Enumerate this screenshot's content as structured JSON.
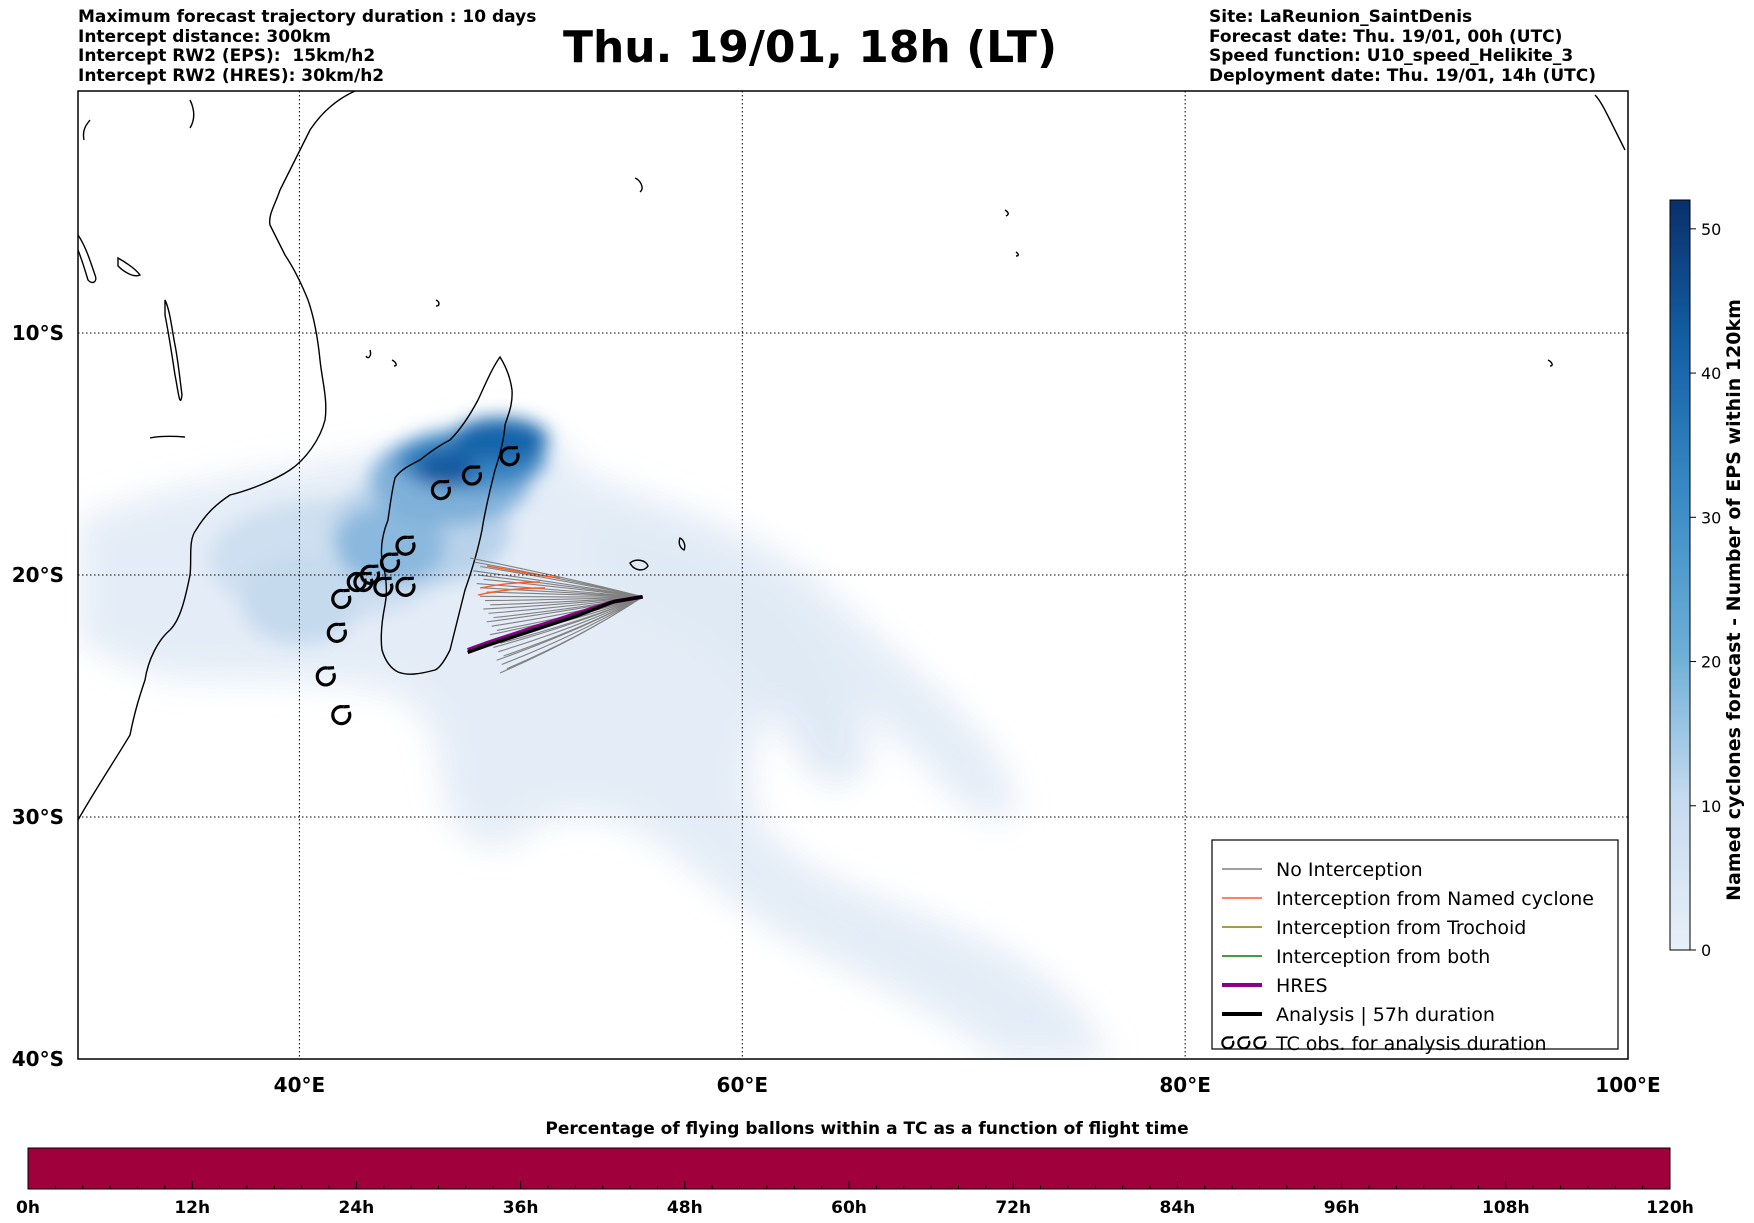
{
  "header_left": [
    "Maximum forecast trajectory duration : 10 days",
    "Intercept distance: 300km",
    "Intercept RW2 (EPS):  15km/h2",
    "Intercept RW2 (HRES): 30km/h2"
  ],
  "header_right": [
    "Site: LaReunion_SaintDenis",
    "Forecast date: Thu. 19/01, 00h (UTC)",
    "Speed function: U10_speed_Helikite_3",
    "Deployment date: Thu. 19/01, 14h (UTC)"
  ],
  "title": "Thu. 19/01, 18h (LT)",
  "map": {
    "lon_range": [
      30,
      100
    ],
    "lat_range": [
      0,
      -40
    ],
    "lon_ticks": [
      {
        "v": 40,
        "label": "40°E"
      },
      {
        "v": 60,
        "label": "60°E"
      },
      {
        "v": 80,
        "label": "80°E"
      },
      {
        "v": 100,
        "label": "100°E"
      }
    ],
    "lat_ticks": [
      {
        "v": -10,
        "label": "10°S"
      },
      {
        "v": -20,
        "label": "20°S"
      },
      {
        "v": -30,
        "label": "30°S"
      },
      {
        "v": -40,
        "label": "40°S"
      }
    ],
    "grid": "dotted"
  },
  "colorbar": {
    "label": "Named cyclones forecast - Number of EPS within 120km",
    "range": [
      0,
      52
    ],
    "ticks": [
      "0",
      "10",
      "20",
      "30",
      "40",
      "50"
    ],
    "colors": [
      "#e6eef8",
      "#08306b"
    ]
  },
  "legend": {
    "placement": "lower-right",
    "items": [
      {
        "label": "No Interception",
        "color": "#808080",
        "style": "thin-line"
      },
      {
        "label": "Interception from Named cyclone",
        "color": "#ff5a1e",
        "style": "thin-line"
      },
      {
        "label": "Interception from Trochoid",
        "color": "#808000",
        "style": "thin-line"
      },
      {
        "label": "Interception from both",
        "color": "#008000",
        "style": "thin-line"
      },
      {
        "label": "HRES",
        "color": "#8b008b",
        "style": "thick-line"
      },
      {
        "label": "Analysis | 57h duration",
        "color": "#000000",
        "style": "thick-line"
      },
      {
        "label": "TC obs. for analysis duration",
        "color": "#000000",
        "style": "cyclone-symbol"
      }
    ]
  },
  "bottom_bar": {
    "title": "Percentage of flying ballons within a TC as a function of flight time",
    "color": "#a0003c",
    "ticks": [
      "0h",
      "12h",
      "24h",
      "36h",
      "48h",
      "60h",
      "72h",
      "84h",
      "96h",
      "108h",
      "120h"
    ]
  },
  "tc_observations": [
    [
      49.5,
      -15.1
    ],
    [
      47.8,
      -15.9
    ],
    [
      46.4,
      -16.5
    ],
    [
      44.8,
      -18.8
    ],
    [
      44.1,
      -19.5
    ],
    [
      43.2,
      -20.0
    ],
    [
      42.9,
      -20.3
    ],
    [
      42.6,
      -20.3
    ],
    [
      44.8,
      -20.5
    ],
    [
      43.8,
      -20.5
    ],
    [
      41.9,
      -21.0
    ],
    [
      41.7,
      -22.4
    ],
    [
      41.2,
      -24.2
    ],
    [
      41.9,
      -25.8
    ]
  ],
  "analysis_track": [
    [
      55.5,
      -20.9
    ],
    [
      54.2,
      -21.1
    ],
    [
      52.5,
      -21.7
    ],
    [
      50.5,
      -22.3
    ],
    [
      48.5,
      -22.9
    ],
    [
      47.6,
      -23.2
    ]
  ],
  "hres_track": [
    [
      55.5,
      -20.9
    ],
    [
      54.2,
      -21.1
    ],
    [
      52.5,
      -21.6
    ],
    [
      50.5,
      -22.2
    ],
    [
      48.5,
      -22.8
    ],
    [
      47.6,
      -23.1
    ]
  ]
}
